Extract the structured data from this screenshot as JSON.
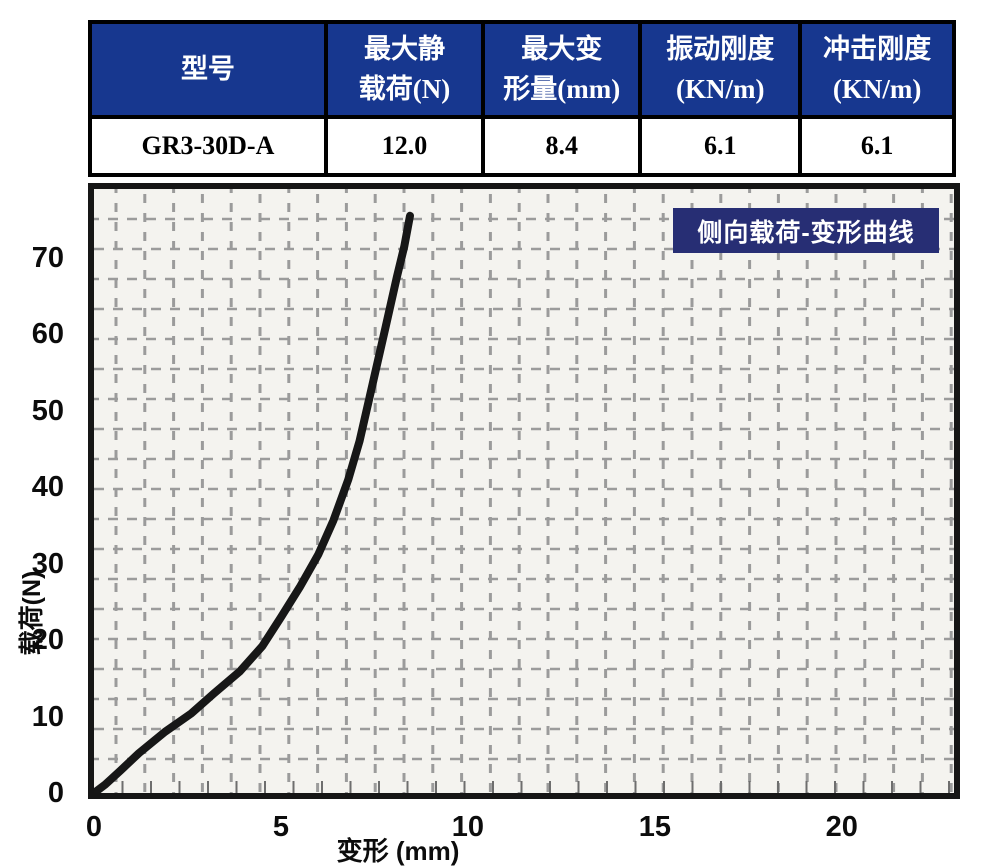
{
  "table": {
    "columns": [
      {
        "label": "型号"
      },
      {
        "label": "最大静\n载荷(N)"
      },
      {
        "label": "最大变\n形量(mm)"
      },
      {
        "label": "振动刚度\n(KN/m)"
      },
      {
        "label": "冲击刚度\n(KN/m)"
      }
    ],
    "rows": [
      {
        "model": "GR3-30D-A",
        "max_static_load_n": "12.0",
        "max_deformation_mm": "8.4",
        "vibration_stiffness": "6.1",
        "impact_stiffness": "6.1"
      }
    ]
  },
  "chart_data": {
    "type": "line",
    "title": "侧向载荷-变形曲线",
    "xlabel": "变形 (mm)",
    "ylabel": "载荷(N)",
    "x_ticks": [
      0,
      5,
      10,
      15,
      20
    ],
    "y_ticks": [
      0,
      10,
      20,
      30,
      40,
      50,
      60,
      70
    ],
    "xlim": [
      0,
      23
    ],
    "ylim": [
      0,
      79
    ],
    "grid": "dashed",
    "legend_position": "top-right",
    "series": [
      {
        "name": "侧向载荷-变形曲线",
        "points": [
          [
            0,
            0
          ],
          [
            0.3,
            1.1
          ],
          [
            0.7,
            2.9
          ],
          [
            1.2,
            5.2
          ],
          [
            1.9,
            8.0
          ],
          [
            2.6,
            10.4
          ],
          [
            3.2,
            13.0
          ],
          [
            3.9,
            15.9
          ],
          [
            4.5,
            19.2
          ],
          [
            5.0,
            23.0
          ],
          [
            5.5,
            26.9
          ],
          [
            6.0,
            31.2
          ],
          [
            6.4,
            35.6
          ],
          [
            6.8,
            41.0
          ],
          [
            7.1,
            46.0
          ],
          [
            7.45,
            53.5
          ],
          [
            7.8,
            61.0
          ],
          [
            8.1,
            67.5
          ],
          [
            8.3,
            71.5
          ],
          [
            8.45,
            75.5
          ]
        ]
      }
    ]
  },
  "colors": {
    "header_bg": "#17378f",
    "badge_bg": "#272e74",
    "curve": "#171717",
    "plot_bg": "#f4f3ef",
    "grid": "#9b9b9b"
  }
}
